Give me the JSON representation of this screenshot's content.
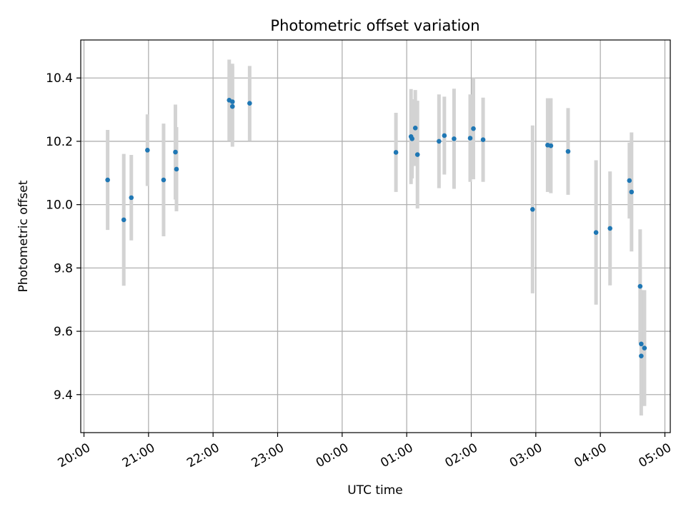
{
  "chart_data": {
    "type": "scatter",
    "title": "Photometric offset variation",
    "xlabel": "UTC time",
    "ylabel": "Photometric offset",
    "x_tick_labels": [
      "20:00",
      "21:00",
      "22:00",
      "23:00",
      "00:00",
      "01:00",
      "02:00",
      "03:00",
      "04:00",
      "05:00"
    ],
    "y_ticks": [
      9.4,
      9.6,
      9.8,
      10.0,
      10.2,
      10.4
    ],
    "y_tick_labels": [
      "9.4",
      "9.6",
      "9.8",
      "10.0",
      "10.2",
      "10.4"
    ],
    "xlim": [
      "19:57",
      "05:05"
    ],
    "ylim": [
      9.28,
      10.52
    ],
    "grid": true,
    "colors": {
      "marker": "#1f77b4",
      "errorbar": "#d3d3d3",
      "grid": "#b0b0b0"
    },
    "points": [
      {
        "t": "20:22",
        "y": 10.078,
        "err": 0.158
      },
      {
        "t": "20:37",
        "y": 9.952,
        "err": 0.208
      },
      {
        "t": "20:44",
        "y": 10.022,
        "err": 0.135
      },
      {
        "t": "20:59",
        "y": 10.172,
        "err": 0.113
      },
      {
        "t": "21:14",
        "y": 10.078,
        "err": 0.178
      },
      {
        "t": "21:25",
        "y": 10.166,
        "err": 0.15
      },
      {
        "t": "21:26",
        "y": 10.112,
        "err": 0.133
      },
      {
        "t": "22:15",
        "y": 10.33,
        "err": 0.128
      },
      {
        "t": "22:18",
        "y": 10.325,
        "err": 0.12
      },
      {
        "t": "22:18",
        "y": 10.31,
        "err": 0.127
      },
      {
        "t": "22:34",
        "y": 10.32,
        "err": 0.118
      },
      {
        "t": "00:50",
        "y": 10.165,
        "err": 0.125
      },
      {
        "t": "01:04",
        "y": 10.215,
        "err": 0.15
      },
      {
        "t": "01:05",
        "y": 10.208,
        "err": 0.125
      },
      {
        "t": "01:08",
        "y": 10.242,
        "err": 0.12
      },
      {
        "t": "01:10",
        "y": 10.158,
        "err": 0.17
      },
      {
        "t": "01:30",
        "y": 10.2,
        "err": 0.148
      },
      {
        "t": "01:35",
        "y": 10.218,
        "err": 0.123
      },
      {
        "t": "01:44",
        "y": 10.208,
        "err": 0.158
      },
      {
        "t": "01:59",
        "y": 10.21,
        "err": 0.138
      },
      {
        "t": "02:02",
        "y": 10.24,
        "err": 0.16
      },
      {
        "t": "02:11",
        "y": 10.205,
        "err": 0.133
      },
      {
        "t": "02:57",
        "y": 9.985,
        "err": 0.265
      },
      {
        "t": "03:11",
        "y": 10.188,
        "err": 0.148
      },
      {
        "t": "03:14",
        "y": 10.186,
        "err": 0.15
      },
      {
        "t": "03:30",
        "y": 10.168,
        "err": 0.137
      },
      {
        "t": "03:56",
        "y": 9.912,
        "err": 0.228
      },
      {
        "t": "04:09",
        "y": 9.925,
        "err": 0.18
      },
      {
        "t": "04:27",
        "y": 10.076,
        "err": 0.12
      },
      {
        "t": "04:29",
        "y": 10.04,
        "err": 0.188
      },
      {
        "t": "04:37",
        "y": 9.742,
        "err": 0.18
      },
      {
        "t": "04:38",
        "y": 9.56,
        "err": 0.17
      },
      {
        "t": "04:38",
        "y": 9.522,
        "err": 0.188
      },
      {
        "t": "04:41",
        "y": 9.547,
        "err": 0.183
      }
    ]
  }
}
